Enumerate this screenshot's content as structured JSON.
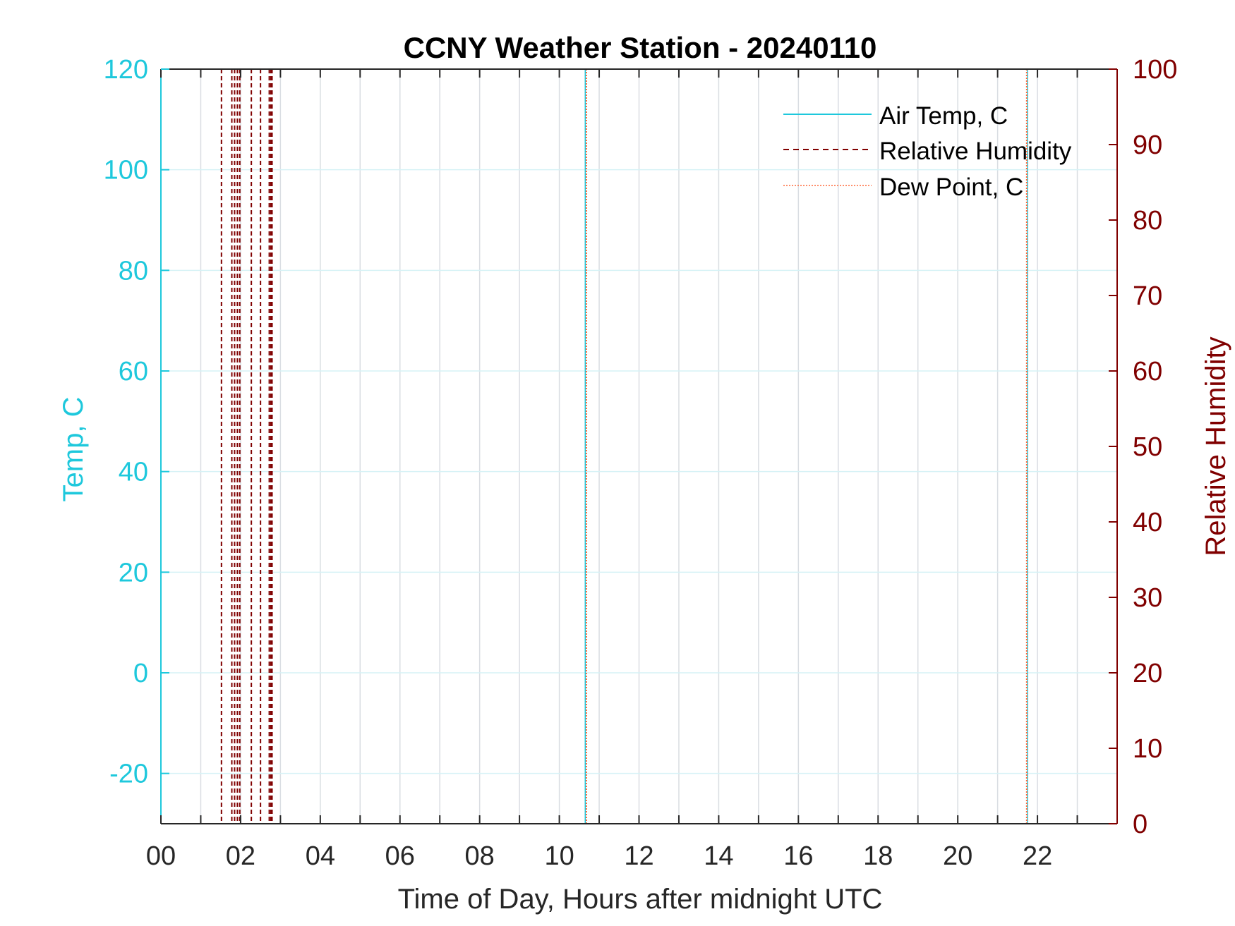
{
  "chart_data": {
    "type": "line",
    "title": "CCNY Weather Station - 20240110",
    "xlabel": "Time of Day, Hours after midnight UTC",
    "ylabel_left": "Temp, C",
    "ylabel_right": "Relative Humidity",
    "xlim": [
      0,
      24
    ],
    "ylim_left": [
      -30,
      120
    ],
    "ylim_right": [
      0,
      100
    ],
    "x_ticks": [
      0,
      2,
      4,
      6,
      8,
      10,
      12,
      14,
      16,
      18,
      20,
      22
    ],
    "x_tick_labels": [
      "00",
      "02",
      "04",
      "06",
      "08",
      "10",
      "12",
      "14",
      "16",
      "18",
      "20",
      "22"
    ],
    "x_minor_gridlines": [
      1,
      3,
      5,
      7,
      9,
      11,
      13,
      15,
      17,
      19,
      21,
      23
    ],
    "y_left_ticks": [
      -20,
      0,
      20,
      40,
      60,
      80,
      100,
      120
    ],
    "y_left_tick_labels": [
      "-20",
      "0",
      "20",
      "40",
      "60",
      "80",
      "100",
      "120"
    ],
    "y_right_ticks": [
      0,
      10,
      20,
      30,
      40,
      50,
      60,
      70,
      80,
      90,
      100
    ],
    "y_right_tick_labels": [
      "0",
      "10",
      "20",
      "30",
      "40",
      "50",
      "60",
      "70",
      "80",
      "90",
      "100"
    ],
    "grid": true,
    "legend_position": "top-right",
    "colors": {
      "air_temp": "#1ec8dc",
      "relative_humidity": "#800000",
      "dew_point": "#ff6a3c",
      "frame": "#262626",
      "grid": "#d9dde2",
      "hgrid": "#d6f2f6",
      "title": "#000000"
    },
    "series": [
      {
        "name": "Air Temp, C",
        "axis": "left",
        "style": "solid",
        "vertical_spikes_at_hours": [
          10.65,
          21.75
        ]
      },
      {
        "name": "Relative Humidity",
        "axis": "right",
        "style": "dashed",
        "vertical_spikes_at_hours": [
          1.52,
          1.78,
          1.85,
          1.92,
          1.98,
          2.27,
          2.5,
          2.72,
          2.76,
          2.79
        ]
      },
      {
        "name": "Dew Point, C",
        "axis": "left",
        "style": "dotted",
        "vertical_spikes_at_hours": [
          10.68,
          21.73
        ]
      }
    ]
  }
}
